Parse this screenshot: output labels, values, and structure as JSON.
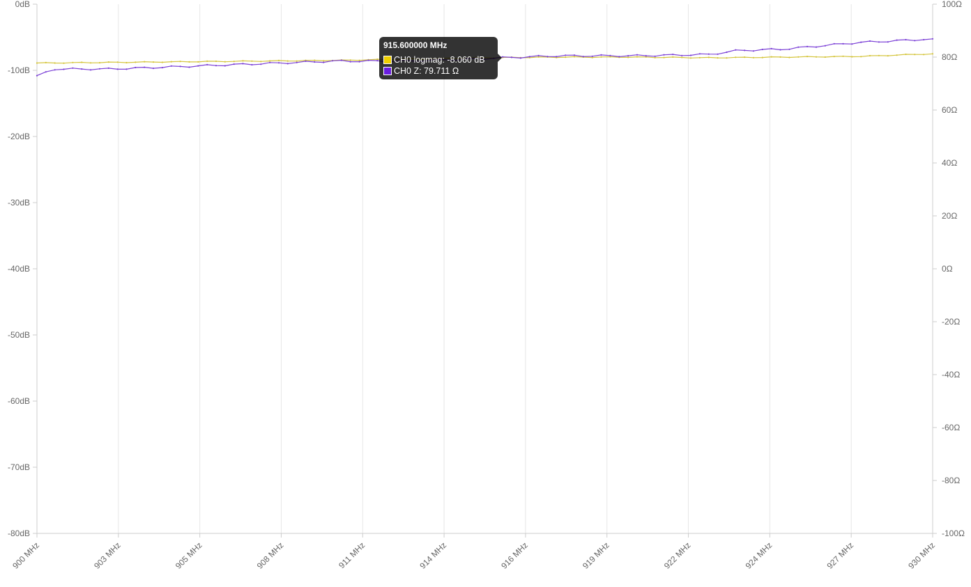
{
  "chart_data": {
    "type": "line",
    "xlabel": "",
    "y_left": {
      "label": "",
      "range": [
        -80,
        0
      ],
      "ticks": [
        "0dB",
        "-10dB",
        "-20dB",
        "-30dB",
        "-40dB",
        "-50dB",
        "-60dB",
        "-70dB",
        "-80dB"
      ]
    },
    "y_right": {
      "label": "",
      "range": [
        -100,
        100
      ],
      "ticks": [
        "100Ω",
        "80Ω",
        "60Ω",
        "40Ω",
        "20Ω",
        "0Ω",
        "-20Ω",
        "-40Ω",
        "-60Ω",
        "-80Ω",
        "-100Ω"
      ]
    },
    "x_range_mhz": [
      900,
      930
    ],
    "x_ticks": [
      "900 MHz",
      "903 MHz",
      "905 MHz",
      "908 MHz",
      "911 MHz",
      "914 MHz",
      "916 MHz",
      "919 MHz",
      "922 MHz",
      "924 MHz",
      "927 MHz",
      "930 MHz"
    ],
    "grid": true,
    "series": [
      {
        "name": "CH0 logmag",
        "unit": "dB",
        "axis": "left",
        "color": "#d4c43a",
        "x": [
          900.0,
          902.5,
          905.0,
          907.5,
          910.0,
          912.5,
          915.0,
          917.5,
          920.0,
          922.5,
          925.0,
          927.5,
          930.0
        ],
        "values": [
          -8.9,
          -8.8,
          -8.7,
          -8.6,
          -8.5,
          -8.3,
          -8.1,
          -8.0,
          -8.0,
          -8.1,
          -8.0,
          -7.9,
          -7.5
        ]
      },
      {
        "name": "CH0 Z",
        "unit": "Ω",
        "axis": "right",
        "color": "#7a3fd6",
        "x": [
          900.0,
          900.6,
          902.5,
          905.0,
          907.5,
          910.0,
          912.5,
          915.0,
          917.5,
          920.0,
          922.5,
          923.5,
          925.0,
          927.5,
          929.0,
          930.0
        ],
        "values": [
          73.0,
          75.5,
          75.5,
          76.5,
          77.5,
          78.5,
          78.5,
          79.5,
          80.5,
          80.5,
          81.0,
          82.5,
          83.0,
          85.5,
          86.3,
          86.9
        ]
      }
    ],
    "tooltip": {
      "title": "915.600000 MHz",
      "rows": [
        {
          "color": "#f0d000",
          "text": "CH0 logmag: -8.060 dB"
        },
        {
          "color": "#6a1ee0",
          "text": "CH0 Z: 79.711 Ω"
        }
      ]
    }
  }
}
